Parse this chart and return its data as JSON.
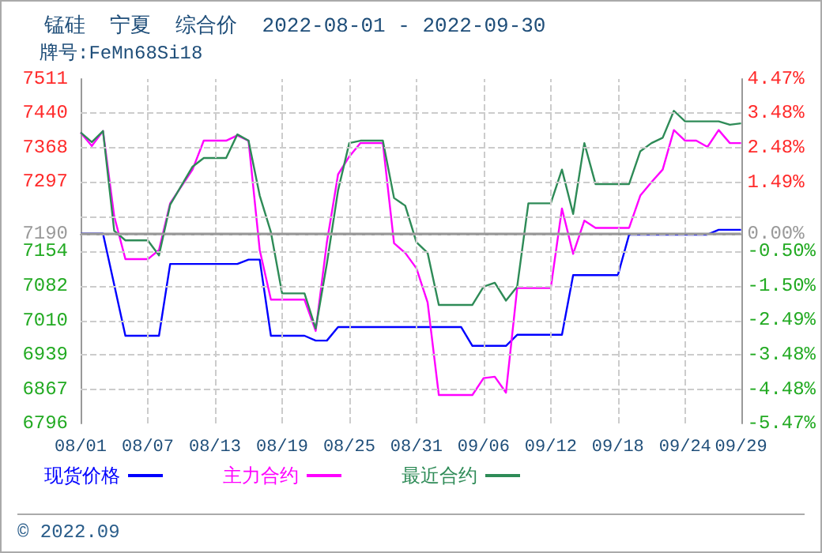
{
  "chart_data": {
    "type": "line",
    "title": "锰硅  宁夏  综合价  2022-08-01 - 2022-09-30",
    "subtitle": "牌号:FeMn68Si18",
    "annotations": [
      "© 2022.09"
    ],
    "xlim": [
      "--08-01",
      "--09-29"
    ],
    "xticks": [
      {
        "value": "--08-01",
        "label": "08/01"
      },
      {
        "value": "--08-07",
        "label": "08/07"
      },
      {
        "value": "--08-13",
        "label": "08/13"
      },
      {
        "value": "--08-19",
        "label": "08/19"
      },
      {
        "value": "--08-25",
        "label": "08/25"
      },
      {
        "value": "--08-31",
        "label": "08/31"
      },
      {
        "value": "--09-06",
        "label": "09/06"
      },
      {
        "value": "--09-12",
        "label": "09/12"
      },
      {
        "value": "--09-18",
        "label": "09/18"
      },
      {
        "value": "--09-24",
        "label": "09/24"
      },
      {
        "value": "--09-29",
        "label": "09/29"
      }
    ],
    "ylim": [
      6796,
      7511
    ],
    "yticks": [
      7511,
      7440,
      7368,
      7297,
      {
        "value": 7225,
        "label": null
      },
      7190,
      7154,
      7082,
      7010,
      6939,
      6867,
      6796
    ],
    "y2lim": [
      -5.47,
      4.47
    ],
    "y2ticks": [
      {
        "value": 4.47,
        "label": "4.47%"
      },
      {
        "value": 3.48,
        "label": "3.48%"
      },
      {
        "value": 2.48,
        "label": "2.48%"
      },
      {
        "value": 1.49,
        "label": "1.49%"
      },
      {
        "value": 0,
        "label": "0.00%"
      },
      {
        "value": -0.5,
        "label": "-0.50%"
      },
      {
        "value": -1.5,
        "label": "-1.50%"
      },
      {
        "value": -2.49,
        "label": "-2.49%"
      },
      {
        "value": -3.48,
        "label": "-3.48%"
      },
      {
        "value": -4.48,
        "label": "-4.48%"
      },
      {
        "value": -5.47,
        "label": "-5.47%"
      }
    ],
    "ref_lines": [
      {
        "axis": "y",
        "value": 7190,
        "color": "#999999",
        "line_style": "solid"
      }
    ],
    "grid": true,
    "legend": "bottom left",
    "marker": "none",
    "line_style": "solid",
    "series": [
      {
        "name": "现货价格",
        "color": "#0000ff",
        "x": [
          "--08-01",
          "--08-03",
          "--08-05",
          "--08-08",
          "--08-09",
          "--08-15",
          "--08-16",
          "--08-17",
          "--08-18",
          "--08-21",
          "--08-22",
          "--08-23",
          "--08-24",
          "--09-04",
          "--09-05",
          "--09-08",
          "--09-09",
          "--09-13",
          "--09-14",
          "--09-18",
          "--09-19",
          "--09-26",
          "--09-27",
          "--09-29"
        ],
        "values": [
          7190,
          7190,
          6978,
          6978,
          7127,
          7127,
          7136,
          7136,
          6978,
          6978,
          6968,
          6968,
          6996,
          6996,
          6957,
          6957,
          6980,
          6980,
          7104,
          7104,
          7188,
          7188,
          7198,
          7198
        ]
      },
      {
        "name": "主力合约",
        "color": "#ff00ff",
        "x": [
          "--08-01",
          "--08-02",
          "--08-03",
          "--08-04",
          "--08-05",
          "--08-07",
          "--08-08",
          "--08-09",
          "--08-11",
          "--08-12",
          "--08-14",
          "--08-15",
          "--08-16",
          "--08-17",
          "--08-18",
          "--08-19",
          "--08-21",
          "--08-22",
          "--08-23",
          "--08-24",
          "--08-25",
          "--08-26",
          "--08-28",
          "--08-29",
          "--08-30",
          "--08-31",
          "--09-01",
          "--09-02",
          "--09-05",
          "--09-06",
          "--09-07",
          "--09-08",
          "--09-09",
          "--09-12",
          "--09-13",
          "--09-14",
          "--09-15",
          "--09-16",
          "--09-19",
          "--09-20",
          "--09-21",
          "--09-22",
          "--09-23",
          "--09-24",
          "--09-25",
          "--09-26",
          "--09-27",
          "--09-28",
          "--09-29"
        ],
        "values": [
          7400,
          7372,
          7403,
          7226,
          7137,
          7137,
          7156,
          7253,
          7323,
          7383,
          7383,
          7394,
          7383,
          7156,
          7053,
          7053,
          7053,
          6988,
          7172,
          7313,
          7350,
          7378,
          7378,
          7170,
          7150,
          7118,
          7047,
          6855,
          6855,
          6890,
          6893,
          6860,
          7077,
          7077,
          7242,
          7148,
          7217,
          7202,
          7202,
          7269,
          7297,
          7323,
          7405,
          7383,
          7383,
          7370,
          7405,
          7378,
          7378
        ]
      },
      {
        "name": "最近合约",
        "color": "#2e8b57",
        "x": [
          "--08-01",
          "--08-02",
          "--08-03",
          "--08-04",
          "--08-05",
          "--08-07",
          "--08-08",
          "--08-09",
          "--08-11",
          "--08-12",
          "--08-14",
          "--08-15",
          "--08-16",
          "--08-17",
          "--08-18",
          "--08-19",
          "--08-21",
          "--08-22",
          "--08-23",
          "--08-24",
          "--08-25",
          "--08-26",
          "--08-28",
          "--08-29",
          "--08-30",
          "--08-31",
          "--09-01",
          "--09-02",
          "--09-05",
          "--09-06",
          "--09-07",
          "--09-08",
          "--09-09",
          "--09-10",
          "--09-12",
          "--09-13",
          "--09-14",
          "--09-15",
          "--09-16",
          "--09-19",
          "--09-20",
          "--09-21",
          "--09-22",
          "--09-23",
          "--09-24",
          "--09-27",
          "--09-28",
          "--09-29"
        ],
        "values": [
          7400,
          7380,
          7403,
          7196,
          7176,
          7176,
          7145,
          7250,
          7329,
          7347,
          7347,
          7396,
          7383,
          7269,
          7193,
          7066,
          7066,
          6993,
          7128,
          7280,
          7378,
          7383,
          7383,
          7264,
          7248,
          7172,
          7150,
          7042,
          7042,
          7080,
          7088,
          7051,
          7080,
          7253,
          7253,
          7323,
          7231,
          7378,
          7293,
          7293,
          7361,
          7378,
          7389,
          7445,
          7423,
          7423,
          7416,
          7419
        ]
      }
    ]
  }
}
